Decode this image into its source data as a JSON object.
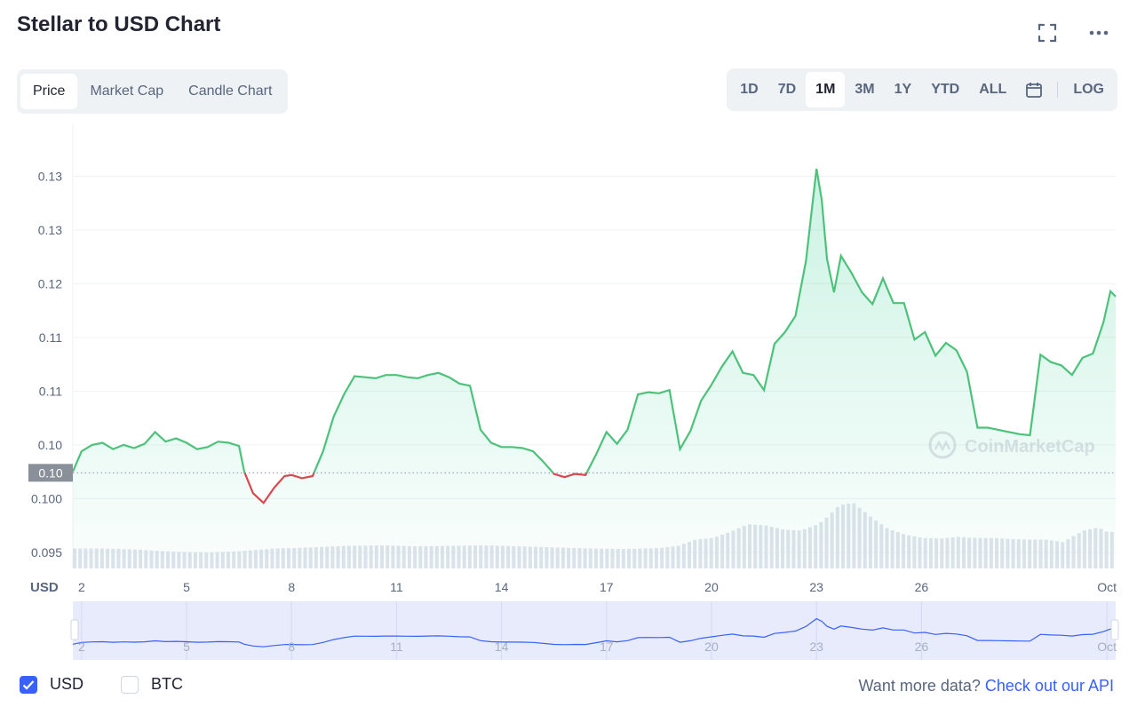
{
  "header": {
    "title": "Stellar to USD Chart"
  },
  "icons": {
    "fullscreen": "fullscreen-icon",
    "more": "more-options-icon",
    "calendar": "calendar-icon"
  },
  "tabs": [
    {
      "label": "Price",
      "active": true
    },
    {
      "label": "Market Cap",
      "active": false
    },
    {
      "label": "Candle Chart",
      "active": false
    }
  ],
  "ranges": [
    {
      "label": "1D",
      "active": false
    },
    {
      "label": "7D",
      "active": false
    },
    {
      "label": "1M",
      "active": true
    },
    {
      "label": "3M",
      "active": false
    },
    {
      "label": "1Y",
      "active": false
    },
    {
      "label": "YTD",
      "active": false
    },
    {
      "label": "ALL",
      "active": false
    }
  ],
  "log_label": "LOG",
  "watermark": "CoinMarketCap",
  "colors": {
    "up": "#16c784",
    "down": "#ea3943",
    "nav_line": "#3861fb",
    "accent": "#3861fb"
  },
  "chart_data": {
    "type": "area",
    "title": "Stellar to USD Chart",
    "ylabel": "USD",
    "x_ticks": [
      "2",
      "5",
      "8",
      "11",
      "14",
      "17",
      "20",
      "23",
      "26",
      "Oct"
    ],
    "y_tick_labels": [
      "0.095",
      "0.100",
      "0.10",
      "0.11",
      "0.11",
      "0.12",
      "0.13",
      "0.13"
    ],
    "y_tick_values": [
      0.095,
      0.1,
      0.105,
      0.11,
      0.115,
      0.12,
      0.125,
      0.13
    ],
    "ylim": [
      0.0935,
      0.1345
    ],
    "baseline_value": 0.1024,
    "baseline_label": "0.10",
    "x_range": [
      1.75,
      31.55
    ],
    "series": [
      {
        "name": "Price (USD)",
        "x": [
          1.75,
          2.0,
          2.3,
          2.6,
          2.9,
          3.2,
          3.5,
          3.8,
          4.1,
          4.4,
          4.7,
          5.0,
          5.3,
          5.6,
          5.9,
          6.2,
          6.5,
          6.65,
          6.9,
          7.2,
          7.5,
          7.8,
          8.0,
          8.3,
          8.6,
          8.9,
          9.2,
          9.5,
          9.8,
          10.1,
          10.4,
          10.7,
          11.0,
          11.3,
          11.6,
          11.9,
          12.2,
          12.5,
          12.8,
          13.1,
          13.4,
          13.7,
          14.0,
          14.3,
          14.6,
          14.9,
          15.2,
          15.5,
          15.8,
          16.1,
          16.4,
          16.7,
          17.0,
          17.3,
          17.6,
          17.9,
          18.2,
          18.5,
          18.8,
          19.1,
          19.4,
          19.7,
          20.0,
          20.3,
          20.6,
          20.9,
          21.2,
          21.5,
          21.8,
          22.1,
          22.4,
          22.7,
          23.0,
          23.15,
          23.3,
          23.5,
          23.7,
          24.0,
          24.3,
          24.6,
          24.9,
          25.2,
          25.5,
          25.8,
          26.1,
          26.4,
          26.7,
          27.0,
          27.3,
          27.6,
          27.9,
          28.2,
          28.5,
          28.8,
          29.1,
          29.4,
          29.7,
          30.0,
          30.3,
          30.6,
          30.9,
          31.2,
          31.4,
          31.55
        ],
        "values": [
          0.1025,
          0.1044,
          0.105,
          0.1052,
          0.1046,
          0.105,
          0.1047,
          0.1051,
          0.1062,
          0.1053,
          0.1056,
          0.1052,
          0.1046,
          0.1048,
          0.1053,
          0.1052,
          0.1049,
          0.1025,
          0.1005,
          0.0996,
          0.101,
          0.1021,
          0.1022,
          0.1019,
          0.1021,
          0.1044,
          0.1076,
          0.1097,
          0.1114,
          0.1113,
          0.1112,
          0.1115,
          0.1115,
          0.1113,
          0.1112,
          0.1115,
          0.1117,
          0.1113,
          0.1107,
          0.1105,
          0.1064,
          0.1052,
          0.1048,
          0.1048,
          0.1047,
          0.1044,
          0.1034,
          0.1023,
          0.102,
          0.1023,
          0.1022,
          0.1041,
          0.1062,
          0.1051,
          0.1064,
          0.1097,
          0.1099,
          0.1098,
          0.1101,
          0.1046,
          0.1063,
          0.1091,
          0.1106,
          0.1123,
          0.1137,
          0.1117,
          0.1115,
          0.1101,
          0.1144,
          0.1155,
          0.117,
          0.1221,
          0.1307,
          0.1278,
          0.1223,
          0.1192,
          0.1226,
          0.121,
          0.1192,
          0.1181,
          0.1205,
          0.1182,
          0.1182,
          0.1148,
          0.1155,
          0.1133,
          0.1145,
          0.1138,
          0.1118,
          0.1066,
          0.1066,
          0.1064,
          0.1062,
          0.106,
          0.1059,
          0.1134,
          0.1127,
          0.1124,
          0.1115,
          0.1131,
          0.1135,
          0.1164,
          0.1193,
          0.1188
        ]
      }
    ],
    "volume": {
      "x": [
        1.75,
        2.5,
        3.5,
        4.5,
        5.5,
        6.5,
        7.5,
        8.5,
        9.5,
        10.5,
        11.5,
        12.5,
        13.5,
        14.5,
        15.5,
        16.5,
        17.5,
        18.5,
        19.0,
        19.5,
        20.0,
        20.5,
        21.0,
        21.5,
        22.0,
        22.5,
        23.0,
        23.3,
        23.6,
        24.0,
        24.5,
        25.0,
        25.5,
        26.0,
        26.5,
        27.0,
        27.5,
        28.0,
        28.5,
        29.0,
        29.5,
        30.0,
        30.3,
        30.6,
        31.0,
        31.3,
        31.55
      ],
      "values": [
        0.38,
        0.38,
        0.36,
        0.32,
        0.3,
        0.33,
        0.38,
        0.4,
        0.43,
        0.44,
        0.42,
        0.43,
        0.44,
        0.42,
        0.4,
        0.38,
        0.37,
        0.39,
        0.43,
        0.55,
        0.58,
        0.7,
        0.84,
        0.82,
        0.74,
        0.72,
        0.84,
        1.0,
        1.2,
        1.25,
        0.98,
        0.75,
        0.64,
        0.58,
        0.57,
        0.6,
        0.58,
        0.58,
        0.56,
        0.55,
        0.55,
        0.5,
        0.62,
        0.72,
        0.78,
        0.68,
        0.72
      ]
    }
  },
  "bottom": {
    "currencies": [
      {
        "label": "USD",
        "checked": true
      },
      {
        "label": "BTC",
        "checked": false
      }
    ],
    "more_data_text": "Want more data?",
    "api_link_text": "Check out our API"
  }
}
